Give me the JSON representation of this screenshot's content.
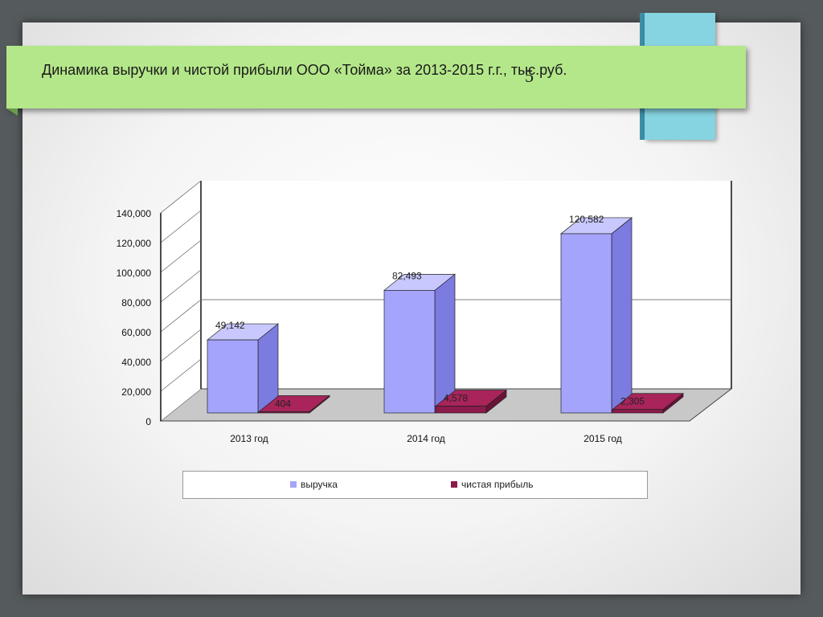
{
  "title": "Динамика выручки и чистой прибыли ООО «Тойма» за 2013-2015 г.г., тыс.руб.",
  "title_before": "Динамика выручки и чистой прибыли ООО «Тойма» за 2013-2015",
  "title_after": " г.г., тыс.руб.",
  "page_mark": "5",
  "colors": {
    "revenue_front": "#a4a4fc",
    "revenue_side": "#7b7be0",
    "revenue_top": "#c8c8ff",
    "profit_front": "#8c1a4a",
    "profit_side": "#6a1238",
    "profit_top": "#a8245a",
    "banner": "#b4e78a",
    "tab": "#86d3e1"
  },
  "chart_data": {
    "type": "bar",
    "categories": [
      "2013 год",
      "2014 год",
      "2015 год"
    ],
    "series": [
      {
        "name": "выручка",
        "values": [
          49142,
          82493,
          120582
        ],
        "labels": [
          "49,142",
          "82,493",
          "120,582"
        ]
      },
      {
        "name": "чистая прибыль",
        "values": [
          404,
          4578,
          2305
        ],
        "labels": [
          "404",
          "4,578",
          "2,305"
        ]
      }
    ],
    "ylim": [
      0,
      140000
    ],
    "yticks": [
      0,
      20000,
      40000,
      60000,
      80000,
      100000,
      120000,
      140000
    ],
    "ytick_labels": [
      "0",
      "20,000",
      "40,000",
      "60,000",
      "80,000",
      "100,000",
      "120,000",
      "140,000"
    ],
    "xlabel": "",
    "ylabel": "",
    "legend": "bottom",
    "style": "3d"
  }
}
